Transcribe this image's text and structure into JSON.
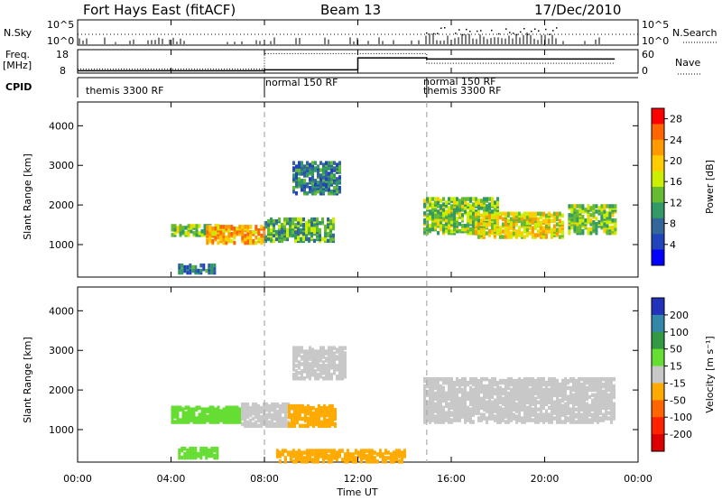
{
  "header": {
    "station": "Fort Hays East (fitACF)",
    "beam": "Beam 13",
    "date": "17/Dec/2010"
  },
  "panels": {
    "nsky": {
      "left_label": "N.Sky",
      "right_label": "N.Search",
      "ticks": [
        "10^5",
        "10^0"
      ]
    },
    "freq": {
      "left_label": "Freq.",
      "left_unit": "[MHz]",
      "right_label": "Nave",
      "left_ticks": [
        "18",
        "8"
      ],
      "right_ticks": [
        "60",
        "0"
      ]
    },
    "cpid": {
      "label": "CPID",
      "segments": [
        {
          "label": "themis 3300 RF",
          "start": 0,
          "end": 8
        },
        {
          "label": "normal 150 RF",
          "start": 8,
          "end": 14.95
        },
        {
          "label": "normal 150 RF",
          "start": 14.95,
          "end": 24
        },
        {
          "label": "themis 3300 RF",
          "start": 14.95,
          "end": 24
        }
      ]
    }
  },
  "colorbars": {
    "power": {
      "label": "Power [dB]",
      "ticks": [
        "28",
        "24",
        "20",
        "16",
        "12",
        "8",
        "4"
      ],
      "colors": [
        "#ff0000",
        "#ff6600",
        "#ff9900",
        "#ffcc00",
        "#ccee00",
        "#66bb33",
        "#339966",
        "#336699",
        "#2244bb",
        "#0000ff"
      ]
    },
    "velocity": {
      "label": "Velocity [m s⁻¹]",
      "ticks": [
        "200",
        "100",
        "50",
        "15",
        "-15",
        "-50",
        "-100",
        "-200"
      ],
      "colors": [
        "#2233bb",
        "#3388aa",
        "#339944",
        "#66dd33",
        "#c8c8c8",
        "#ffaa00",
        "#ff6600",
        "#ff2200",
        "#dd0000"
      ]
    }
  },
  "chart_data": {
    "type": "heatmap",
    "xlabel": "Time UT",
    "ylabel": "Slant Range [km]",
    "x_ticks": [
      "00:00",
      "04:00",
      "08:00",
      "12:00",
      "16:00",
      "20:00",
      "00:00"
    ],
    "y_ticks": [
      "1000",
      "2000",
      "3000",
      "4000"
    ],
    "xlim": [
      0,
      24
    ],
    "ylim": [
      180,
      4600
    ],
    "dashed_lines": [
      8,
      14.95
    ],
    "cpid_changes": [
      8,
      14.95
    ],
    "power_regions": [
      {
        "x0": 4.0,
        "x1": 6.0,
        "y0": 1250,
        "y1": 1500,
        "level": 14
      },
      {
        "x0": 5.5,
        "x1": 8.0,
        "y0": 1050,
        "y1": 1500,
        "level": 22
      },
      {
        "x0": 8.0,
        "x1": 11.0,
        "y0": 1100,
        "y1": 1650,
        "level": 12
      },
      {
        "x0": 9.2,
        "x1": 11.2,
        "y0": 2300,
        "y1": 3100,
        "level": 9
      },
      {
        "x0": 4.3,
        "x1": 5.9,
        "y0": 300,
        "y1": 500,
        "level": 8
      },
      {
        "x0": 14.8,
        "x1": 18.0,
        "y0": 1300,
        "y1": 2200,
        "level": 14
      },
      {
        "x0": 17.0,
        "x1": 20.8,
        "y0": 1200,
        "y1": 1800,
        "level": 18
      },
      {
        "x0": 21.0,
        "x1": 23.0,
        "y0": 1300,
        "y1": 2000,
        "level": 14
      }
    ],
    "velocity_regions": [
      {
        "x0": 4.0,
        "x1": 7.0,
        "y0": 1200,
        "y1": 1600,
        "vel": 30
      },
      {
        "x0": 7.0,
        "x1": 9.0,
        "y0": 1100,
        "y1": 1650,
        "vel": 0
      },
      {
        "x0": 9.0,
        "x1": 11.0,
        "y0": 1100,
        "y1": 1600,
        "vel": -40
      },
      {
        "x0": 4.3,
        "x1": 6.0,
        "y0": 300,
        "y1": 550,
        "vel": 30
      },
      {
        "x0": 9.2,
        "x1": 11.5,
        "y0": 2300,
        "y1": 3100,
        "vel": 0
      },
      {
        "x0": 8.5,
        "x1": 14.0,
        "y0": 200,
        "y1": 500,
        "vel": -40
      },
      {
        "x0": 14.8,
        "x1": 23.0,
        "y0": 1200,
        "y1": 2300,
        "vel": 0
      }
    ]
  }
}
